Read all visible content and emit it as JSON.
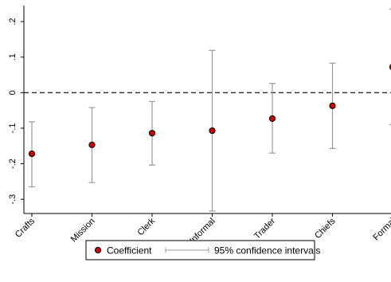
{
  "chart_data": {
    "type": "scatter",
    "categories": [
      "Crafts",
      "Mission",
      "Clerk",
      "Informal",
      "Trader",
      "Chiefs",
      "Formal"
    ],
    "series": [
      {
        "name": "Coefficient",
        "values": [
          -0.172,
          -0.147,
          -0.114,
          -0.107,
          -0.073,
          -0.037,
          0.072
        ]
      },
      {
        "name": "95% confidence intervals",
        "lower": [
          -0.265,
          -0.253,
          -0.204,
          -0.333,
          -0.17,
          -0.157,
          -0.09
        ],
        "upper": [
          -0.082,
          -0.042,
          -0.025,
          0.119,
          0.026,
          0.083,
          0.235
        ]
      }
    ],
    "yticks": [
      -0.3,
      -0.2,
      -0.1,
      0,
      0.1,
      0.2
    ],
    "ytick_labels": [
      "-.3",
      "-.2",
      "-.1",
      "0",
      ".1",
      ".2"
    ],
    "ylim": [
      -0.34,
      0.245
    ],
    "reference_line": 0,
    "grid": false,
    "legend_position": "bottom",
    "colors": {
      "marker_fill": "#cc0000",
      "marker_edge": "#000000",
      "ci": "#9a9a9a",
      "axis": "#000000"
    },
    "xlabel": "",
    "ylabel": ""
  }
}
